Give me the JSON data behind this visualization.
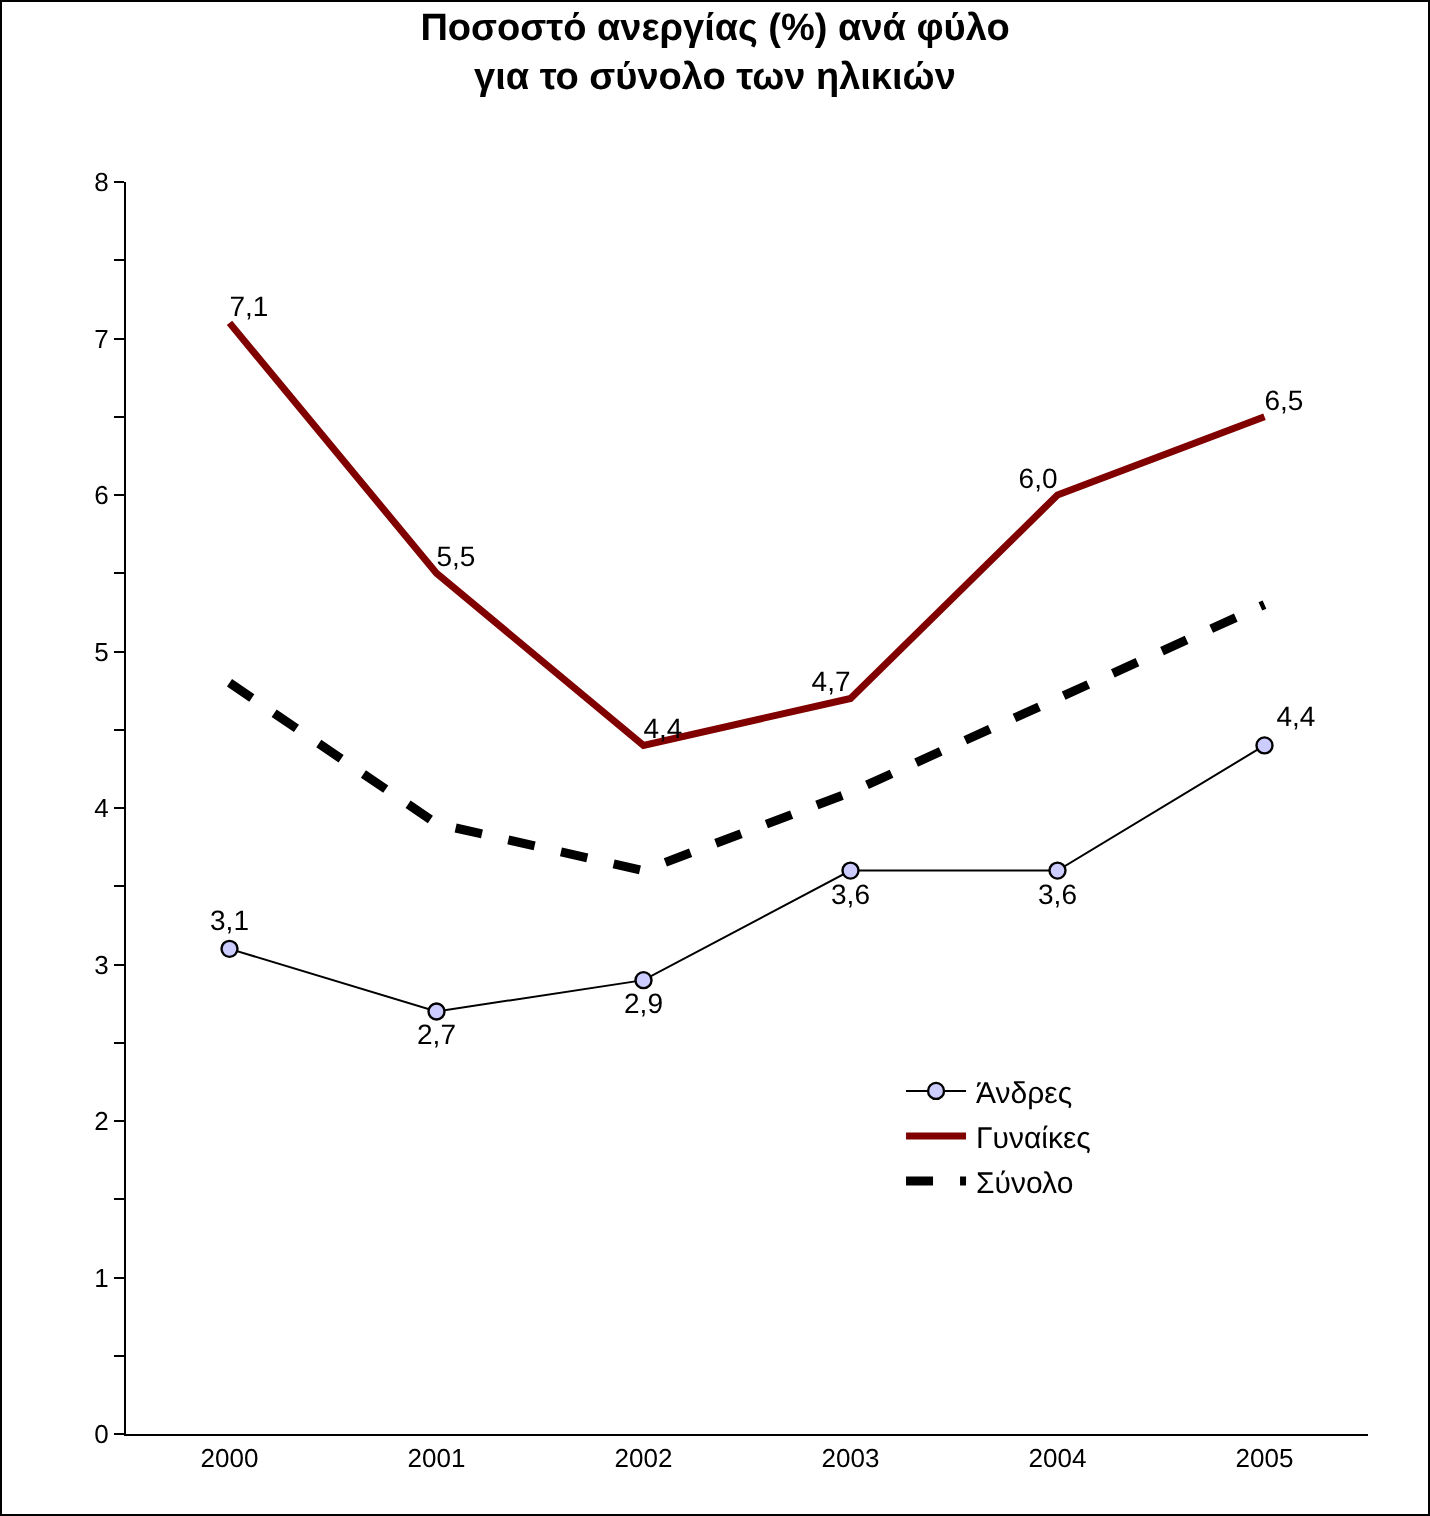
{
  "chart_data": {
    "type": "line",
    "title": "Ποσοστό ανεργίας (%) ανά φύλο\nγια το σύνολο των ηλικιών",
    "categories": [
      "2000",
      "2001",
      "2002",
      "2003",
      "2004",
      "2005"
    ],
    "series": [
      {
        "name": "Άνδρες",
        "color": "#000000",
        "marker": "circle",
        "line_style": "solid",
        "values": [
          3.1,
          2.7,
          2.9,
          3.6,
          3.6,
          4.4
        ],
        "value_labels": [
          "3,1",
          "2,7",
          "2,9",
          "3,6",
          "3,6",
          "4,4"
        ]
      },
      {
        "name": "Γυναίκες",
        "color": "#800000",
        "marker": "none",
        "line_style": "solid",
        "values": [
          7.1,
          5.5,
          4.4,
          4.7,
          6.0,
          6.5
        ],
        "value_labels": [
          "7,1",
          "5,5",
          "4,4",
          "4,7",
          "6,0",
          "6,5"
        ]
      },
      {
        "name": "Σύνολο",
        "color": "#000000",
        "marker": "none",
        "line_style": "dashed",
        "values": [
          4.8,
          3.9,
          3.6,
          4.1,
          4.7,
          5.3
        ]
      }
    ],
    "ylim": [
      0,
      8
    ],
    "yticks": [
      0,
      {
        "value": 0.5,
        "label": null
      },
      1,
      {
        "value": 1.5,
        "label": null
      },
      2,
      {
        "value": 2.5,
        "label": null
      },
      3,
      {
        "value": 3.5,
        "label": null
      },
      4,
      {
        "value": 4.5,
        "label": null
      },
      5,
      {
        "value": 5.5,
        "label": null
      },
      6,
      {
        "value": 6.5,
        "label": null
      },
      7,
      {
        "value": 7.5,
        "label": null
      },
      8
    ],
    "grid": false,
    "legend": "bottom right"
  }
}
